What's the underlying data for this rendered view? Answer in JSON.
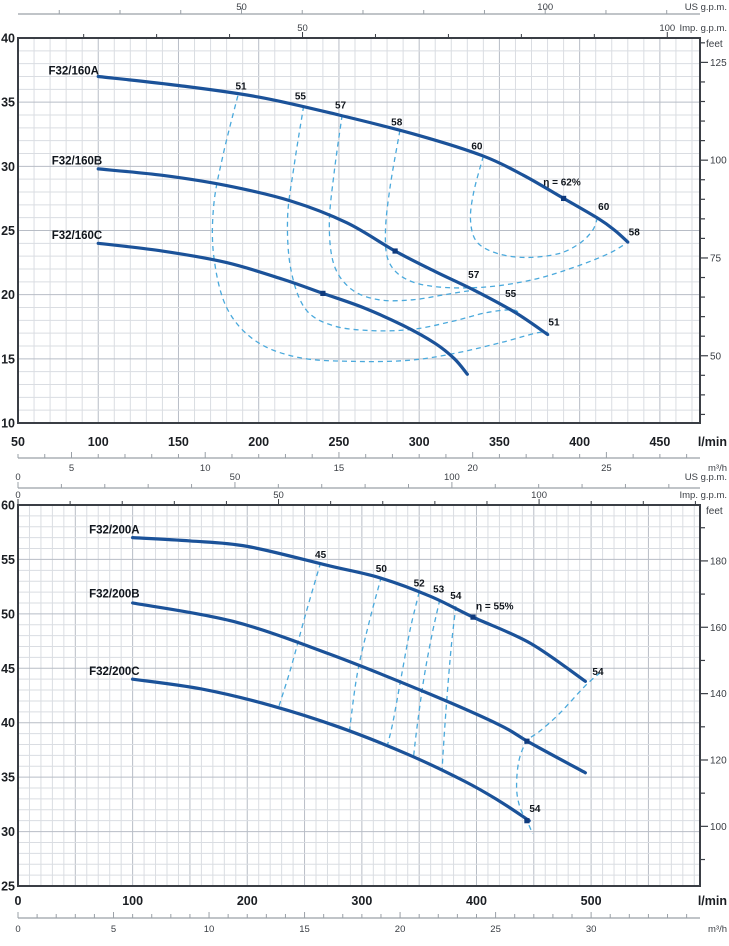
{
  "colors": {
    "curve": "#1b5299",
    "contour": "#4aa9dc",
    "marker": "#0f3a7d",
    "grid_minor": "#dadde2",
    "grid_major": "#b8bdc6",
    "frame": "#3a3e45",
    "axis_line": "#9aa0a7",
    "text_dark": "#1b1e23",
    "text_mid": "#3a3e44"
  },
  "chart_data": [
    {
      "type": "line",
      "panel": "F32/160",
      "x_axis": {
        "unit": "l/min",
        "min": 50,
        "max": 475,
        "tick_labels": [
          50,
          100,
          150,
          200,
          250,
          300,
          350,
          400,
          450
        ],
        "minor_step": 10,
        "major_step": 50
      },
      "y_axis": {
        "min": 10,
        "max": 40,
        "tick_labels": [
          40,
          35,
          30,
          25,
          20,
          15,
          10
        ],
        "minor_step": 1,
        "major_step": 5
      },
      "right_axis": {
        "unit": "feet",
        "tick_labels": [
          125,
          100,
          75,
          50
        ],
        "minor_step": 5
      },
      "top_axes": [
        {
          "unit": "US g.p.m.",
          "tick_labels": [
            50,
            100
          ],
          "minor_step": 10
        },
        {
          "unit": "Imp. g.p.m.",
          "tick_labels": [
            50,
            100
          ],
          "minor_step": 10
        }
      ],
      "bottom_axis": {
        "unit": "m³/h",
        "tick_labels": [
          5,
          10,
          15,
          20,
          25
        ],
        "minor_step": 1
      },
      "series": [
        {
          "name": "F32/160A",
          "label_pos": [
            69,
            37.15
          ],
          "points": [
            [
              100,
              37
            ],
            [
              150,
              36.3
            ],
            [
              200,
              35.4
            ],
            [
              250,
              34.0
            ],
            [
              300,
              32.4
            ],
            [
              340,
              30.8
            ],
            [
              365,
              29.3
            ],
            [
              390,
              27.5
            ],
            [
              412,
              25.9
            ],
            [
              422,
              25.0
            ],
            [
              430,
              24.1
            ]
          ],
          "bep_dot": [
            390,
            27.5
          ]
        },
        {
          "name": "F32/160B",
          "label_pos": [
            71,
            30.15
          ],
          "points": [
            [
              100,
              29.8
            ],
            [
              140,
              29.3
            ],
            [
              180,
              28.5
            ],
            [
              220,
              27.3
            ],
            [
              255,
              25.6
            ],
            [
              285,
              23.4
            ],
            [
              310,
              21.8
            ],
            [
              335,
              20.3
            ],
            [
              360,
              18.6
            ],
            [
              380,
              16.9
            ]
          ],
          "bep_dot": [
            285,
            23.4
          ]
        },
        {
          "name": "F32/160C",
          "label_pos": [
            71,
            24.35
          ],
          "points": [
            [
              100,
              24
            ],
            [
              140,
              23.4
            ],
            [
              180,
              22.5
            ],
            [
              215,
              21.2
            ],
            [
              240,
              20.1
            ],
            [
              265,
              19.0
            ],
            [
              290,
              17.6
            ],
            [
              310,
              16.2
            ],
            [
              322,
              15.0
            ],
            [
              330,
              13.8
            ]
          ],
          "bep_dot": [
            240,
            20.1
          ]
        }
      ],
      "efficiency_contours": [
        {
          "value": 51,
          "points": [
            [
              187,
              35.5
            ],
            [
              178,
              31
            ],
            [
              172,
              27
            ],
            [
              172,
              23
            ],
            [
              180,
              19
            ],
            [
              198,
              16.4
            ],
            [
              225,
              15.1
            ],
            [
              260,
              14.8
            ],
            [
              295,
              14.9
            ],
            [
              325,
              15.5
            ],
            [
              352,
              16.3
            ],
            [
              377,
              17.1
            ],
            [
              381,
              16.6
            ]
          ]
        },
        {
          "value": 55,
          "points": [
            [
              228,
              34.7
            ],
            [
              222,
              30
            ],
            [
              218,
              26
            ],
            [
              220,
              22
            ],
            [
              229,
              18.9
            ],
            [
              246,
              17.6
            ],
            [
              270,
              17.2
            ],
            [
              296,
              17.3
            ],
            [
              320,
              17.9
            ],
            [
              342,
              18.6
            ],
            [
              359,
              18.8
            ],
            [
              364,
              18.2
            ]
          ]
        },
        {
          "value": 57,
          "points": [
            [
              252,
              34.0
            ],
            [
              247,
              29.5
            ],
            [
              244,
              25.5
            ],
            [
              247,
              22.3
            ],
            [
              258,
              20.4
            ],
            [
              275,
              19.6
            ],
            [
              296,
              19.6
            ],
            [
              316,
              20.0
            ],
            [
              333,
              20.3
            ],
            [
              337,
              19.9
            ]
          ]
        },
        {
          "value": 58,
          "points": [
            [
              288,
              32.8
            ],
            [
              282,
              28.5
            ],
            [
              279,
              25
            ],
            [
              281,
              22.6
            ],
            [
              292,
              21.2
            ],
            [
              312,
              20.6
            ],
            [
              342,
              20.6
            ],
            [
              372,
              21.2
            ],
            [
              398,
              22.2
            ],
            [
              418,
              23.2
            ],
            [
              429,
              24.0
            ]
          ]
        },
        {
          "value": 60,
          "points": [
            [
              340,
              30.8
            ],
            [
              334,
              28
            ],
            [
              332,
              25.8
            ],
            [
              336,
              24.1
            ],
            [
              349,
              23.2
            ],
            [
              367,
              22.9
            ],
            [
              387,
              23.2
            ],
            [
              400,
              24.0
            ],
            [
              408,
              25.0
            ],
            [
              411,
              25.95
            ]
          ]
        }
      ],
      "efficiency_labels": [
        {
          "text": "51",
          "pos": [
            189,
            36.0
          ]
        },
        {
          "text": "55",
          "pos": [
            226,
            35.2
          ]
        },
        {
          "text": "57",
          "pos": [
            251,
            34.5
          ]
        },
        {
          "text": "58",
          "pos": [
            286,
            33.2
          ]
        },
        {
          "text": "60",
          "pos": [
            336,
            31.3
          ]
        },
        {
          "text": "η = 62%",
          "pos": [
            389,
            28.5
          ]
        },
        {
          "text": "60",
          "pos": [
            415,
            26.6
          ]
        },
        {
          "text": "58",
          "pos": [
            434,
            24.6
          ]
        },
        {
          "text": "57",
          "pos": [
            334,
            21.3
          ]
        },
        {
          "text": "55",
          "pos": [
            357,
            19.8
          ]
        },
        {
          "text": "51",
          "pos": [
            384,
            17.6
          ]
        }
      ]
    },
    {
      "type": "line",
      "panel": "F32/200",
      "x_axis": {
        "unit": "l/min",
        "min": 0,
        "max": 595,
        "tick_labels": [
          0,
          100,
          200,
          300,
          400,
          500
        ],
        "minor_step": 10,
        "major_step": 50
      },
      "y_axis": {
        "min": 25,
        "max": 60,
        "tick_labels": [
          60,
          55,
          50,
          45,
          40,
          35,
          30,
          25
        ],
        "minor_step": 1,
        "major_step": 5
      },
      "right_axis": {
        "unit": "feet",
        "tick_labels": [
          180,
          160,
          140,
          120,
          100
        ],
        "minor_step": 10
      },
      "top_axes": [
        {
          "unit": "US g.p.m.",
          "tick_labels": [
            0,
            50,
            100
          ],
          "minor_step": 10
        },
        {
          "unit": "Imp. g.p.m.",
          "tick_labels": [
            0,
            50,
            100
          ],
          "minor_step": 10
        }
      ],
      "bottom_axis": {
        "unit": "m³/h",
        "tick_labels": [
          0,
          5,
          10,
          15,
          20,
          25,
          30
        ],
        "minor_step": 1
      },
      "series": [
        {
          "name": "F32/200A",
          "label_pos": [
            62,
            57.4
          ],
          "points": [
            [
              100,
              57
            ],
            [
              150,
              56.7
            ],
            [
              200,
              56.2
            ],
            [
              272,
              54.4
            ],
            [
              316,
              53.3
            ],
            [
              360,
              51.6
            ],
            [
              397,
              49.7
            ],
            [
              447,
              47.3
            ],
            [
              495,
              43.8
            ]
          ],
          "bep_dot": [
            397,
            49.7
          ]
        },
        {
          "name": "F32/200B",
          "label_pos": [
            62,
            51.5
          ],
          "points": [
            [
              100,
              51
            ],
            [
              188,
              49.3
            ],
            [
              272,
              46.3
            ],
            [
              360,
              42.6
            ],
            [
              420,
              39.8
            ],
            [
              446,
              38.2
            ],
            [
              495,
              35.4
            ]
          ],
          "bep_dot": [
            444,
            38.3
          ]
        },
        {
          "name": "F32/200C",
          "label_pos": [
            62,
            44.4
          ],
          "points": [
            [
              100,
              44
            ],
            [
              160,
              43.1
            ],
            [
              220,
              41.6
            ],
            [
              280,
              39.6
            ],
            [
              340,
              37.1
            ],
            [
              390,
              34.6
            ],
            [
              420,
              32.8
            ],
            [
              446,
              31.0
            ]
          ],
          "bep_dot": [
            444,
            31.0
          ]
        }
      ],
      "efficiency_contours": [
        {
          "value": 45,
          "points": [
            [
              264,
              54.7
            ],
            [
              251,
              50
            ],
            [
              238,
              45
            ],
            [
              227,
              41.3
            ]
          ]
        },
        {
          "value": 50,
          "points": [
            [
              317,
              53.4
            ],
            [
              307,
              49.5
            ],
            [
              296,
              44.5
            ],
            [
              289,
              39.1
            ]
          ]
        },
        {
          "value": 52,
          "points": [
            [
              350,
              52.0
            ],
            [
              342,
              48.5
            ],
            [
              334,
              44
            ],
            [
              327,
              40
            ],
            [
              322,
              37.8
            ]
          ]
        },
        {
          "value": 53,
          "points": [
            [
              368,
              51.3
            ],
            [
              361,
              48
            ],
            [
              354,
              44
            ],
            [
              348,
              39.5
            ],
            [
              345,
              36.8
            ]
          ]
        },
        {
          "value": 54,
          "points": [
            [
              382,
              50.7
            ],
            [
              378,
              47
            ],
            [
              374,
              42
            ],
            [
              371,
              37.5
            ],
            [
              370,
              35.6
            ]
          ]
        },
        {
          "value": 54,
          "points": [
            [
              508,
              44.6
            ],
            [
              495,
              43.4
            ],
            [
              472,
              40.8
            ],
            [
              455,
              39.2
            ],
            [
              444,
              38.3
            ],
            [
              437,
              36.5
            ],
            [
              435,
              34
            ],
            [
              438,
              32.2
            ],
            [
              444,
              31.0
            ],
            [
              449,
              29.8
            ]
          ]
        }
      ],
      "efficiency_labels": [
        {
          "text": "45",
          "pos": [
            264,
            55.15
          ]
        },
        {
          "text": "50",
          "pos": [
            317,
            53.85
          ]
        },
        {
          "text": "52",
          "pos": [
            350,
            52.5
          ]
        },
        {
          "text": "53",
          "pos": [
            367,
            51.95
          ]
        },
        {
          "text": "54",
          "pos": [
            382,
            51.35
          ]
        },
        {
          "text": "η = 55%",
          "pos": [
            416,
            50.4
          ]
        },
        {
          "text": "54",
          "pos": [
            506,
            44.4
          ]
        },
        {
          "text": "54",
          "pos": [
            451,
            31.8
          ]
        }
      ]
    }
  ]
}
